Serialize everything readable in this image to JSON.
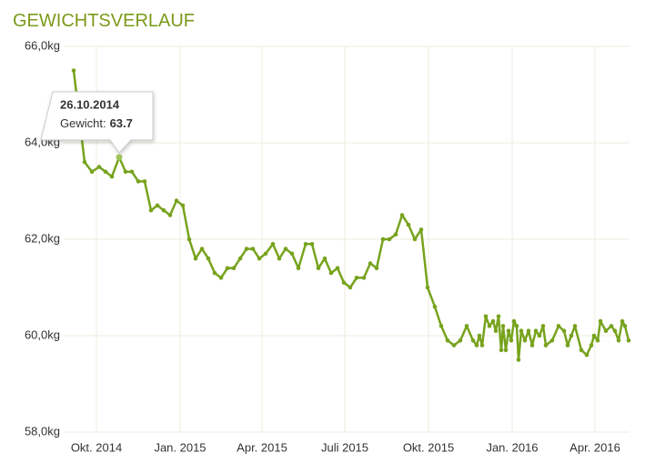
{
  "chart_data": {
    "type": "line",
    "title": "GEWICHTSVERLAUF",
    "x": [
      "2014-09-06",
      "2014-09-18",
      "2014-09-26",
      "2014-10-04",
      "2014-10-11",
      "2014-10-18",
      "2014-10-26",
      "2014-11-02",
      "2014-11-09",
      "2014-11-16",
      "2014-11-23",
      "2014-11-30",
      "2014-12-07",
      "2014-12-14",
      "2014-12-21",
      "2014-12-28",
      "2015-01-04",
      "2015-01-11",
      "2015-01-18",
      "2015-01-25",
      "2015-02-01",
      "2015-02-08",
      "2015-02-15",
      "2015-02-22",
      "2015-03-01",
      "2015-03-08",
      "2015-03-15",
      "2015-03-22",
      "2015-03-29",
      "2015-04-05",
      "2015-04-13",
      "2015-04-20",
      "2015-04-27",
      "2015-05-04",
      "2015-05-11",
      "2015-05-19",
      "2015-05-26",
      "2015-06-02",
      "2015-06-09",
      "2015-06-16",
      "2015-06-23",
      "2015-06-30",
      "2015-07-07",
      "2015-07-14",
      "2015-07-22",
      "2015-07-29",
      "2015-08-05",
      "2015-08-12",
      "2015-08-19",
      "2015-08-26",
      "2015-09-02",
      "2015-09-09",
      "2015-09-16",
      "2015-09-23",
      "2015-09-30",
      "2015-10-08",
      "2015-10-15",
      "2015-10-22",
      "2015-10-29",
      "2015-11-05",
      "2015-11-12",
      "2015-11-19",
      "2015-11-23",
      "2015-11-26",
      "2015-11-29",
      "2015-12-03",
      "2015-12-07",
      "2015-12-11",
      "2015-12-14",
      "2015-12-17",
      "2015-12-20",
      "2015-12-22",
      "2015-12-25",
      "2015-12-28",
      "2015-12-31",
      "2016-01-03",
      "2016-01-06",
      "2016-01-08",
      "2016-01-11",
      "2016-01-15",
      "2016-01-19",
      "2016-01-23",
      "2016-01-27",
      "2016-01-31",
      "2016-02-04",
      "2016-02-07",
      "2016-02-14",
      "2016-02-21",
      "2016-02-27",
      "2016-03-02",
      "2016-03-06",
      "2016-03-10",
      "2016-03-17",
      "2016-03-23",
      "2016-03-28",
      "2016-03-31",
      "2016-04-04",
      "2016-04-07",
      "2016-04-13",
      "2016-04-19",
      "2016-04-23",
      "2016-04-27",
      "2016-05-01",
      "2016-05-04",
      "2016-05-08"
    ],
    "series": [
      {
        "name": "Gewicht",
        "color": "#77a31d",
        "values": [
          65.5,
          63.6,
          63.4,
          63.5,
          63.4,
          63.3,
          63.7,
          63.4,
          63.4,
          63.2,
          63.2,
          62.6,
          62.7,
          62.6,
          62.5,
          62.8,
          62.7,
          62.0,
          61.6,
          61.8,
          61.6,
          61.3,
          61.2,
          61.4,
          61.4,
          61.6,
          61.8,
          61.8,
          61.6,
          61.7,
          61.9,
          61.6,
          61.8,
          61.7,
          61.4,
          61.9,
          61.9,
          61.4,
          61.6,
          61.3,
          61.4,
          61.1,
          61.0,
          61.2,
          61.2,
          61.5,
          61.4,
          62.0,
          62.0,
          62.1,
          62.5,
          62.3,
          62.0,
          62.2,
          61.0,
          60.6,
          60.2,
          59.9,
          59.8,
          59.9,
          60.2,
          59.9,
          59.8,
          60.0,
          59.8,
          60.4,
          60.2,
          60.3,
          60.1,
          60.4,
          59.7,
          60.2,
          59.7,
          60.1,
          59.9,
          60.3,
          60.2,
          59.5,
          60.1,
          59.9,
          60.1,
          59.8,
          60.1,
          60.0,
          60.2,
          59.8,
          59.9,
          60.2,
          60.1,
          59.8,
          60.0,
          60.2,
          59.7,
          59.6,
          59.8,
          60.0,
          59.9,
          60.3,
          60.1,
          60.2,
          60.1,
          59.9,
          60.3,
          60.2,
          59.9
        ]
      }
    ],
    "xlim": [
      "2014-08-26",
      "2016-05-09"
    ],
    "xticks": [
      {
        "value": "2014-10-01",
        "label": "Okt. 2014"
      },
      {
        "value": "2015-01-01",
        "label": "Jan. 2015"
      },
      {
        "value": "2015-04-01",
        "label": "Apr. 2015"
      },
      {
        "value": "2015-07-01",
        "label": "Juli 2015"
      },
      {
        "value": "2015-10-01",
        "label": "Okt. 2015"
      },
      {
        "value": "2016-01-01",
        "label": "Jan. 2016"
      },
      {
        "value": "2016-04-01",
        "label": "Apr. 2016"
      }
    ],
    "ylim": [
      58,
      66
    ],
    "yticks": [
      {
        "value": 58,
        "label": "58,0kg"
      },
      {
        "value": 60,
        "label": "60,0kg"
      },
      {
        "value": 62,
        "label": "62,0kg"
      },
      {
        "value": 64,
        "label": "64,0kg"
      },
      {
        "value": 66,
        "label": "66,0kg"
      }
    ],
    "grid": true,
    "tooltip": {
      "date": "26.10.2014",
      "label": "Gewicht:",
      "value": 63.7,
      "point": 6
    }
  }
}
